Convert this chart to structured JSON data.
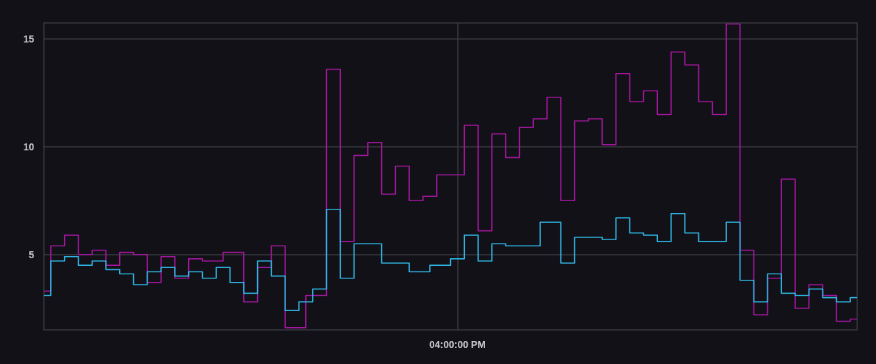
{
  "chart_data": {
    "type": "step",
    "categories": [
      null,
      null,
      null,
      null,
      null,
      null,
      null,
      null,
      null,
      null,
      null,
      null,
      null,
      null,
      null,
      null,
      null,
      null,
      null,
      null,
      null,
      null,
      null,
      null,
      null,
      null,
      null,
      null,
      null,
      null,
      "04:00:00 PM",
      null,
      null,
      null,
      null,
      null,
      null,
      null,
      null,
      null,
      null,
      null,
      null,
      null,
      null,
      null,
      null,
      null,
      null,
      null,
      null,
      null,
      null,
      null,
      null,
      null,
      null,
      null,
      null,
      null
    ],
    "ylim": [
      1.5,
      15.75
    ],
    "yticks": [
      5,
      10,
      15
    ],
    "grid": true,
    "marker": "none",
    "line_style": "solid",
    "series": [
      {
        "color": "#a5169f",
        "values": [
          3.3,
          5.4,
          5.9,
          5.0,
          5.2,
          4.5,
          5.1,
          5.0,
          3.7,
          4.9,
          3.9,
          4.8,
          4.7,
          null,
          5.1,
          2.8,
          4.4,
          5.4,
          1.6,
          null,
          3.1,
          13.6,
          5.6,
          9.6,
          10.2,
          7.8,
          9.1,
          7.5,
          7.7,
          8.7,
          8.7,
          11.0,
          6.1,
          10.6,
          9.5,
          10.9,
          11.3,
          12.3,
          7.5,
          11.2,
          11.3,
          10.1,
          13.4,
          12.1,
          12.6,
          11.5,
          14.4,
          13.8,
          12.1,
          11.5,
          15.7,
          5.2,
          2.2,
          3.9,
          8.5,
          2.5,
          3.6,
          3.1,
          1.9,
          2.0
        ]
      },
      {
        "color": "#2fb5e4",
        "values": [
          3.1,
          4.7,
          4.9,
          4.5,
          4.7,
          4.3,
          4.1,
          3.6,
          4.2,
          4.4,
          4.0,
          4.2,
          3.9,
          4.4,
          3.7,
          3.2,
          4.7,
          4.0,
          2.4,
          2.8,
          3.4,
          7.1,
          3.9,
          5.5,
          5.5,
          4.6,
          4.6,
          4.2,
          null,
          4.5,
          4.8,
          5.9,
          4.7,
          5.5,
          5.4,
          5.4,
          null,
          6.5,
          4.6,
          5.8,
          5.8,
          5.7,
          6.7,
          6.0,
          5.9,
          5.6,
          6.9,
          6.0,
          5.6,
          5.6,
          6.5,
          3.8,
          2.8,
          4.1,
          3.2,
          3.1,
          3.4,
          3.0,
          2.8,
          3.0
        ]
      }
    ]
  }
}
